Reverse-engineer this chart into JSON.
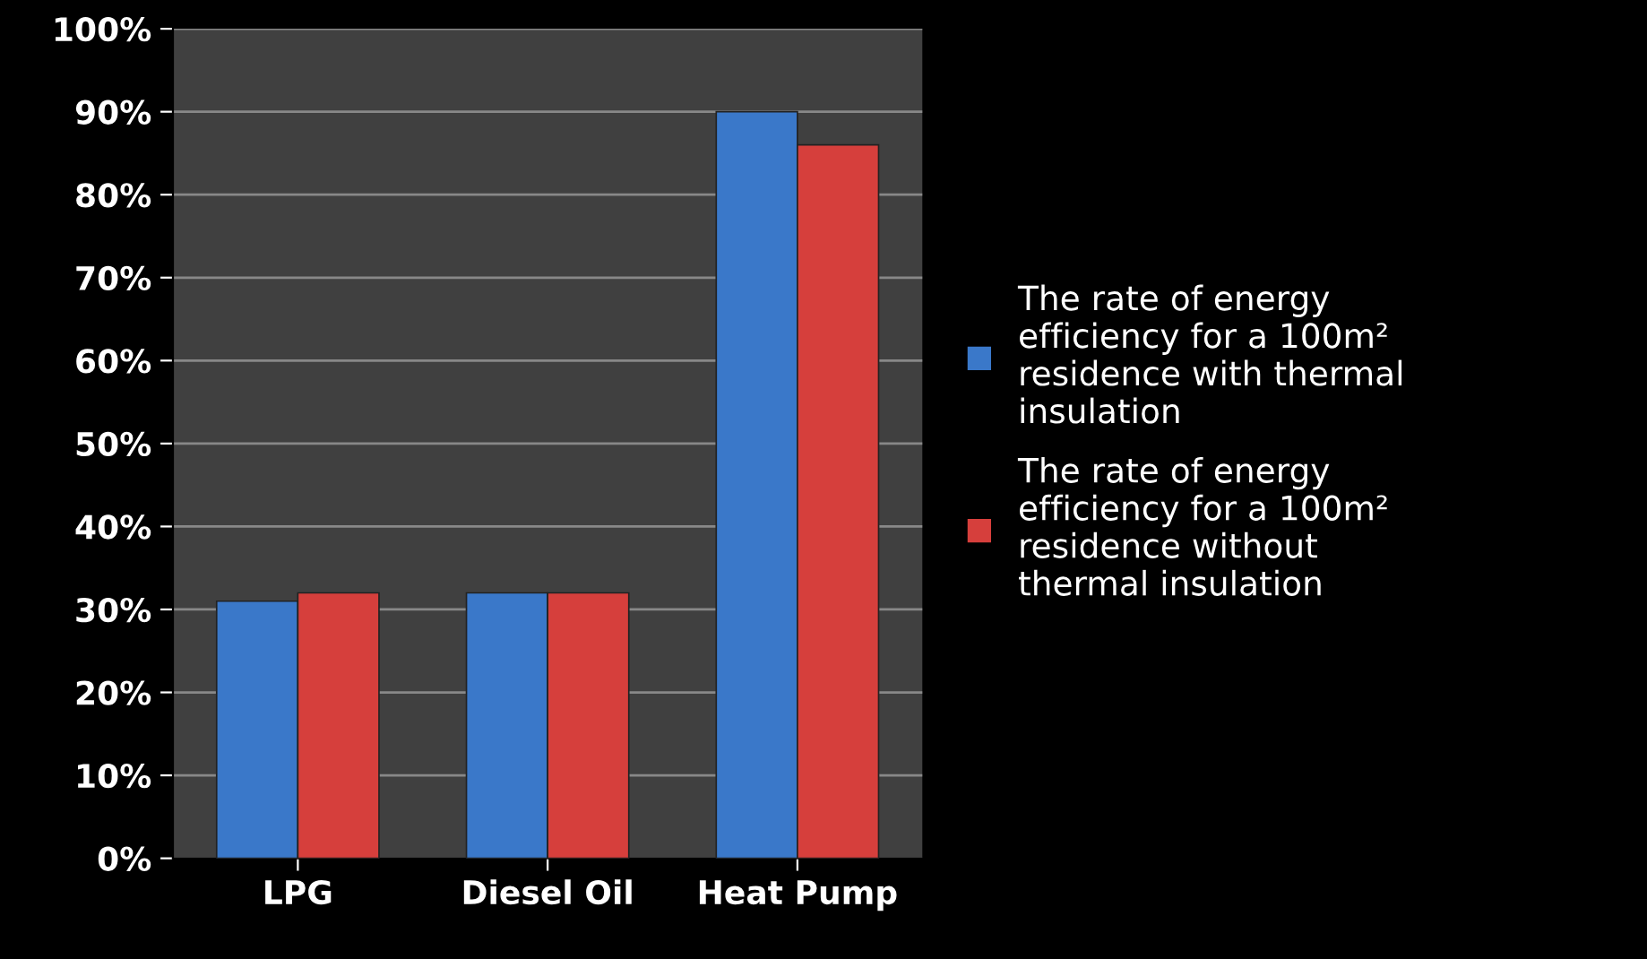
{
  "chart_data": {
    "type": "bar",
    "categories": [
      "LPG",
      "Diesel Oil",
      "Heat Pump"
    ],
    "series": [
      {
        "name": "The rate of energy efficiency for a 100m² residence with thermal insulation",
        "color": "#3a78c9",
        "values": [
          31,
          32,
          90
        ]
      },
      {
        "name": "The rate of energy efficiency for a 100m² residence without thermal insulation",
        "color": "#d63f3c",
        "values": [
          32,
          32,
          86
        ]
      }
    ],
    "ylim": [
      0,
      100
    ],
    "yticks": [
      {
        "value": 0,
        "label": "0%"
      },
      {
        "value": 10,
        "label": "10%"
      },
      {
        "value": 20,
        "label": "20%"
      },
      {
        "value": 30,
        "label": "30%"
      },
      {
        "value": 40,
        "label": "40%"
      },
      {
        "value": 50,
        "label": "50%"
      },
      {
        "value": 60,
        "label": "60%"
      },
      {
        "value": 70,
        "label": "70%"
      },
      {
        "value": 80,
        "label": "80%"
      },
      {
        "value": 90,
        "label": "90%"
      },
      {
        "value": 100,
        "label": "100%"
      }
    ],
    "grid": "y",
    "legend": "right"
  }
}
